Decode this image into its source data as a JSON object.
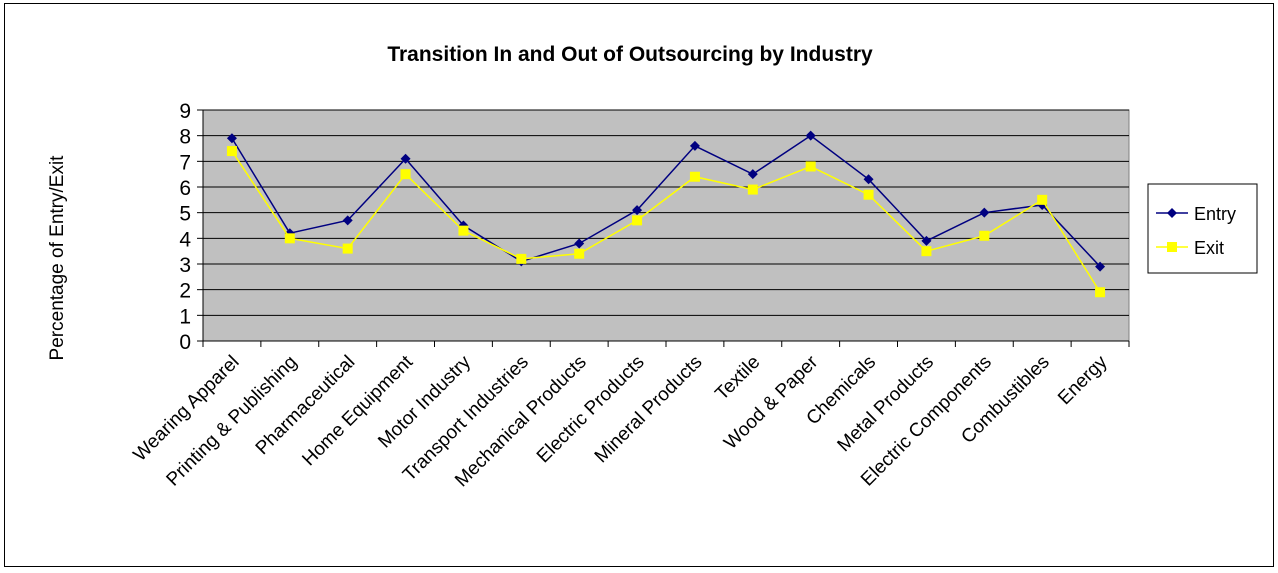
{
  "chart_data": {
    "type": "line",
    "title": "Transition In and Out of Outsourcing by Industry",
    "xlabel": "",
    "ylabel": "Percentage of Entry/Exit",
    "ylim": [
      0,
      9
    ],
    "yticks": [
      0,
      1,
      2,
      3,
      4,
      5,
      6,
      7,
      8,
      9
    ],
    "grid": true,
    "legend_position": "right",
    "plot_background": "#C0C0C0",
    "categories": [
      "Wearing Apparel",
      "Printing & Publishing",
      "Pharmaceutical",
      "Home Equipment",
      "Motor Industry",
      "Transport Industries",
      "Mechanical Products",
      "Electric Products",
      "Mineral Products",
      "Textile",
      "Wood & Paper",
      "Chemicals",
      "Metal Products",
      "Electric Components",
      "Combustibles",
      "Energy"
    ],
    "series": [
      {
        "name": "Entry",
        "color": "#000080",
        "marker": "diamond",
        "values": [
          7.9,
          4.2,
          4.7,
          7.1,
          4.5,
          3.1,
          3.8,
          5.1,
          7.6,
          6.5,
          8.0,
          6.3,
          3.9,
          5.0,
          5.3,
          2.9
        ]
      },
      {
        "name": "Exit",
        "color": "#FFFF00",
        "marker": "square",
        "values": [
          7.4,
          4.0,
          3.6,
          6.5,
          4.3,
          3.2,
          3.4,
          4.7,
          6.4,
          5.9,
          6.8,
          5.7,
          3.5,
          4.1,
          5.5,
          1.9
        ]
      }
    ]
  }
}
